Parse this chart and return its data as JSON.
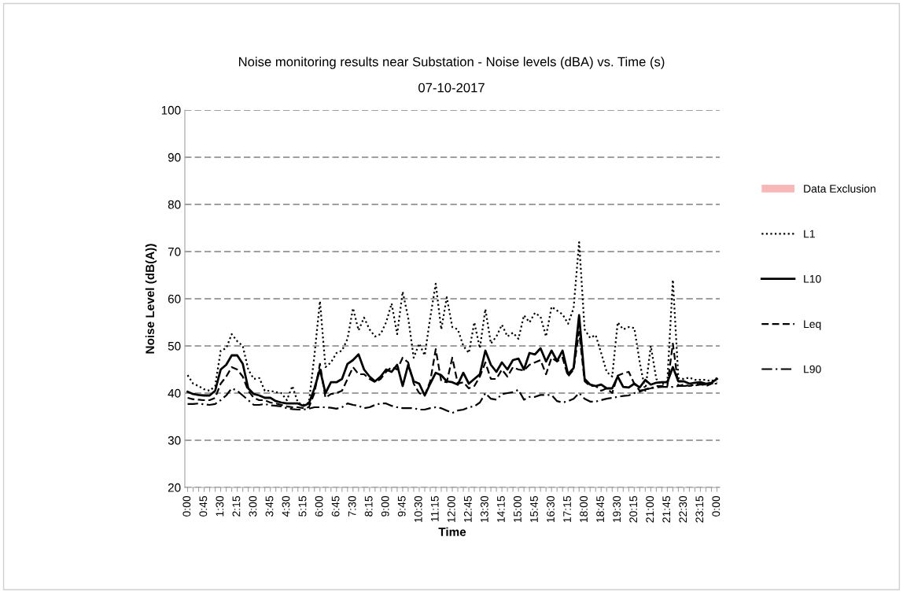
{
  "chart_data": {
    "type": "line",
    "title": "Noise monitoring results near Substation - Noise levels (dBA) vs. Time (s)",
    "subtitle": "07-10-2017",
    "xlabel": "Time",
    "ylabel": "Noise Level (dB(A))",
    "categories": [
      "0:00",
      null,
      null,
      "0:45",
      null,
      null,
      "1:30",
      null,
      null,
      "2:15",
      null,
      null,
      "3:00",
      null,
      null,
      "3:45",
      null,
      null,
      "4:30",
      null,
      null,
      "5:15",
      null,
      null,
      "6:00",
      null,
      null,
      "6:45",
      null,
      null,
      "7:30",
      null,
      null,
      "8:15",
      null,
      null,
      "9:00",
      null,
      null,
      "9:45",
      null,
      null,
      "10:30",
      null,
      null,
      "11:15",
      null,
      null,
      "12:00",
      null,
      null,
      "12:45",
      null,
      null,
      "13:30",
      null,
      null,
      "14:15",
      null,
      null,
      "15:00",
      null,
      null,
      "15:45",
      null,
      null,
      "16:30",
      null,
      null,
      "17:15",
      null,
      null,
      "18:00",
      null,
      null,
      "18:45",
      null,
      null,
      "19:30",
      null,
      null,
      "20:15",
      null,
      null,
      "21:00",
      null,
      null,
      "21:45",
      null,
      null,
      "22:30",
      null,
      null,
      "23:15",
      null,
      null,
      "0:00"
    ],
    "series": [
      {
        "name": "Data Exclusion",
        "type": "bar",
        "color": "#f8b8b8",
        "values": [
          null,
          null,
          null,
          null,
          null,
          null,
          null,
          null,
          null,
          null,
          null,
          null,
          null,
          null,
          null,
          null,
          null,
          null,
          null,
          null,
          null,
          null,
          null,
          null,
          null,
          null,
          null,
          null,
          null,
          null,
          null,
          null,
          null,
          null,
          null,
          null,
          null,
          null,
          null,
          null,
          null,
          null,
          null,
          null,
          null,
          null,
          null,
          null,
          null,
          null,
          null,
          null,
          null,
          null,
          null,
          null,
          null,
          null,
          null,
          null,
          null,
          null,
          null,
          null,
          null,
          null,
          null,
          null,
          null,
          null,
          null,
          null,
          null,
          null,
          null,
          null,
          null,
          null,
          null,
          null,
          null,
          null,
          null,
          null,
          null,
          null,
          null,
          null,
          null,
          null,
          null,
          null,
          null,
          null,
          null,
          null,
          null
        ]
      },
      {
        "name": "L1",
        "color": "#000000",
        "line_style": "dotted",
        "values": [
          43.8,
          42,
          41.5,
          40.8,
          40.5,
          41.5,
          49,
          49.5,
          52.5,
          51,
          50,
          45,
          43,
          43.2,
          40.5,
          40.5,
          40.2,
          40,
          38.5,
          41.5,
          38,
          37.5,
          38,
          48,
          59.5,
          45.5,
          46.5,
          48.5,
          49,
          51.5,
          58,
          53.3,
          56,
          53.5,
          52,
          52.5,
          55,
          59,
          52.5,
          61.5,
          56,
          47.5,
          50.5,
          48,
          56,
          63.2,
          53.5,
          60.3,
          54,
          53.5,
          50,
          48.5,
          55,
          49.5,
          57.8,
          50.5,
          52,
          54.5,
          52,
          52.8,
          51.5,
          56.5,
          55,
          57,
          56.2,
          52,
          58.3,
          57.5,
          56.7,
          54.7,
          58,
          72,
          53.5,
          51.7,
          52.3,
          48.5,
          44.5,
          43.5,
          55,
          53.5,
          54,
          53.8,
          46.5,
          40.5,
          50,
          43,
          41.8,
          42.5,
          64,
          43.2,
          43,
          43.3,
          42.8,
          42.8,
          42.8,
          42.5,
          43.2
        ]
      },
      {
        "name": "L10",
        "color": "#000000",
        "line_style": "solid",
        "values": [
          40.3,
          39.8,
          39.6,
          39.5,
          39.5,
          40.5,
          45,
          46,
          48,
          48,
          46.2,
          41,
          39.8,
          39.5,
          39,
          39,
          38.3,
          38,
          37.8,
          37.8,
          37.8,
          37.3,
          37.8,
          41,
          45,
          40,
          42.3,
          42.3,
          43,
          46.2,
          47,
          48.2,
          45,
          43.5,
          42.5,
          43.5,
          45,
          44.5,
          46,
          41.5,
          46,
          42.5,
          42,
          39.5,
          42,
          44.3,
          43.8,
          42.5,
          42.3,
          41.8,
          44.3,
          42,
          43,
          44,
          49,
          46,
          44.5,
          46.5,
          45,
          47,
          47.3,
          45,
          48.5,
          48.2,
          49.5,
          46.7,
          49,
          46.8,
          49,
          44,
          45.3,
          56.5,
          43,
          41.8,
          41.5,
          41.8,
          41,
          41,
          43.5,
          41.3,
          41.2,
          42,
          41.2,
          42.8,
          41.8,
          42.2,
          42.3,
          42.3,
          45.5,
          42.5,
          42.5,
          42,
          42.2,
          42.3,
          42,
          42.2,
          43
        ]
      },
      {
        "name": "Leq",
        "color": "#000000",
        "line_style": "dashed",
        "values": [
          39,
          38.7,
          38.6,
          38.5,
          38.5,
          39,
          42,
          43.5,
          45.5,
          45,
          43.5,
          40.5,
          39,
          38.5,
          38.5,
          38,
          37.8,
          37.5,
          37.2,
          37,
          37,
          36.8,
          37,
          40,
          46.2,
          39,
          39.8,
          40,
          40.5,
          43,
          45.5,
          44,
          44,
          43,
          42.3,
          43,
          44.5,
          45.5,
          45,
          47.5,
          46.5,
          42,
          40,
          39.5,
          42.5,
          49.3,
          42.5,
          42.3,
          47.5,
          42,
          42.3,
          41,
          41.5,
          43.5,
          46.5,
          43,
          43,
          45,
          43.5,
          45.5,
          45,
          44.8,
          46,
          46.5,
          47,
          44,
          47.5,
          46.7,
          47.5,
          43.5,
          45,
          53,
          42.5,
          41.5,
          41.5,
          40.5,
          41,
          40,
          43.7,
          44.2,
          44.5,
          42,
          40.5,
          40.8,
          41,
          41.5,
          41.5,
          41.5,
          50.5,
          41.5,
          41.8,
          41.5,
          41.8,
          42,
          41.5,
          42,
          42.3
        ]
      },
      {
        "name": "L90",
        "color": "#000000",
        "line_style": "dashdot",
        "values": [
          37.7,
          37.7,
          37.8,
          37.6,
          37.5,
          37.7,
          38.5,
          39.5,
          41,
          40.5,
          39.5,
          38.5,
          37.5,
          37.5,
          37.7,
          37.4,
          37.3,
          37.2,
          36.8,
          36.6,
          36.5,
          36.5,
          36.7,
          37,
          37,
          37,
          36.9,
          36.7,
          37,
          37.8,
          37.5,
          37.3,
          36.8,
          37,
          37.5,
          37.8,
          37.8,
          37.3,
          37,
          36.8,
          36.8,
          36.8,
          36.5,
          36.5,
          36.8,
          37,
          36.8,
          36.3,
          35.8,
          36.3,
          36.5,
          37,
          37.2,
          38,
          40,
          38.8,
          38.6,
          39.8,
          40,
          40.2,
          40.7,
          38.6,
          39.2,
          39.2,
          39.6,
          39.6,
          39.6,
          38.3,
          38,
          38.3,
          38.8,
          40,
          38.8,
          38.2,
          38.2,
          38.5,
          38.8,
          39,
          39.2,
          39.4,
          39.5,
          40,
          40.3,
          40.8,
          41,
          41.2,
          41.3,
          41.3,
          41.3,
          41.5,
          41.5,
          41.6,
          41.6,
          41.8,
          41.8,
          42,
          42
        ]
      }
    ],
    "ylim": [
      20,
      100
    ],
    "yticks": [
      20,
      30,
      40,
      50,
      60,
      70,
      80,
      90,
      100
    ],
    "grid": "y",
    "legend": "right"
  }
}
